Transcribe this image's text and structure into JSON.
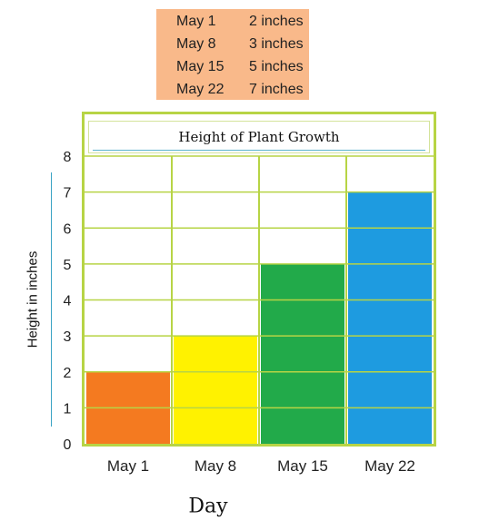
{
  "note": {
    "rows": [
      {
        "date": "May 1",
        "value": "2 inches"
      },
      {
        "date": "May 8",
        "value": "3 inches"
      },
      {
        "date": "May 15",
        "value": "5 inches"
      },
      {
        "date": "May 22",
        "value": "7 inches"
      }
    ]
  },
  "chart_data": {
    "type": "bar",
    "title": "Height of Plant Growth",
    "categories": [
      "May 1",
      "May 8",
      "May 15",
      "May 22"
    ],
    "values": [
      2,
      3,
      5,
      7
    ],
    "colors": [
      "#f47a20",
      "#fff200",
      "#22aa4a",
      "#1e9be0"
    ],
    "xlabel": "Day",
    "ylabel": "Height in inches",
    "ylim": [
      0,
      8
    ],
    "yticks": [
      0,
      1,
      2,
      3,
      4,
      5,
      6,
      7,
      8
    ],
    "grid": true,
    "grid_color": "#b7d445"
  }
}
